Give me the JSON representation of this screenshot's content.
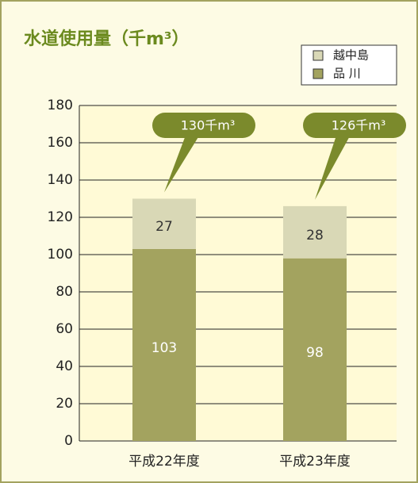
{
  "chart_data": {
    "type": "bar",
    "stacked": true,
    "title": "水道使用量（千m³）",
    "categories": [
      "平成22年度",
      "平成23年度"
    ],
    "series": [
      {
        "name": "品 川",
        "color": "#a3a35f",
        "values": [
          103,
          98
        ]
      },
      {
        "name": "越中島",
        "color": "#d9d8b6",
        "values": [
          27,
          28
        ]
      }
    ],
    "annotations": [
      "130千m³",
      "126千m³"
    ],
    "ylim": [
      0,
      180
    ],
    "yticks": [
      0,
      20,
      40,
      60,
      80,
      100,
      120,
      140,
      160,
      180
    ],
    "grid": true
  }
}
